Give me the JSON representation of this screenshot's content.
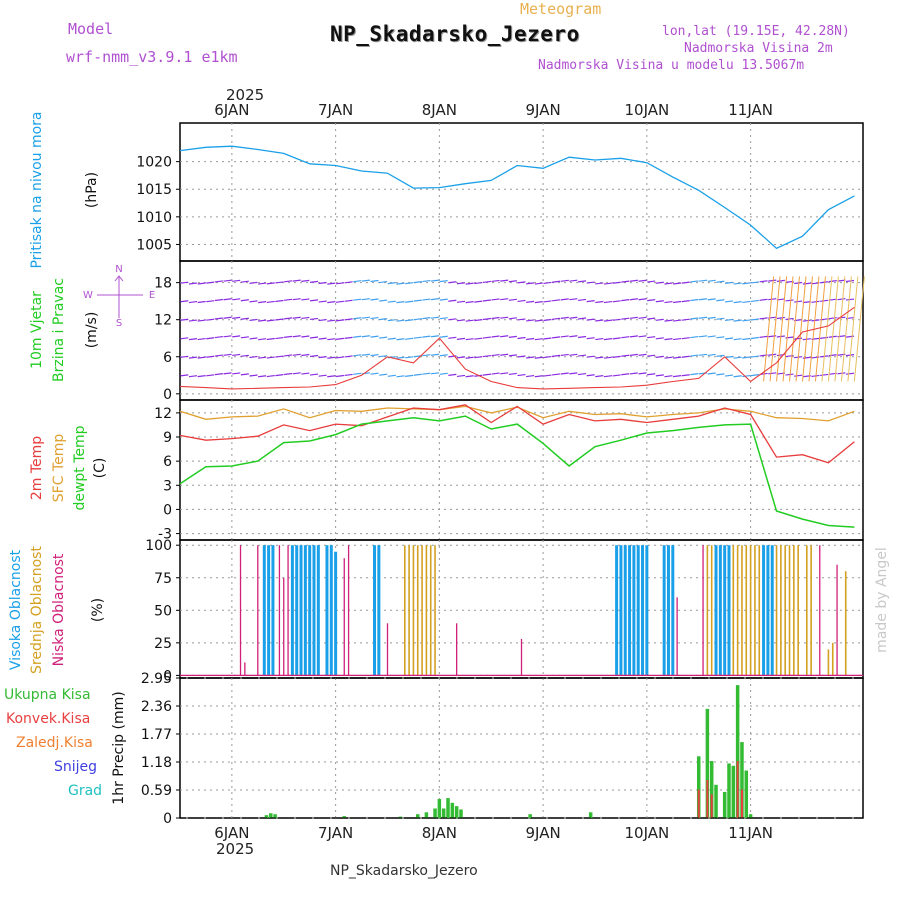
{
  "header": {
    "model_label": "Model",
    "model_name": "wrf-nmm_v3.9.1  e1km",
    "chart_kind": "Meteogram",
    "station": "NP_Skadarsko_Jezero",
    "coords": "lon,lat (19.15E, 42.28N)",
    "elevation": "Nadmorska Visina 2m",
    "model_elevation": "Nadmorska Visina u modelu 13.5067m"
  },
  "footer": {
    "station": "NP_Skadarsko_Jezero",
    "signature": "made by Angel"
  },
  "colors": {
    "pressure": "#1aa0e8",
    "t2m": "#e83b3b",
    "sfc": "#e0a030",
    "dew": "#22cc22",
    "high": "#1aa0e8",
    "mid": "#d4a020",
    "low": "#d0207a",
    "total": "#33bb33",
    "conv": "#e84040",
    "freez": "#f08030",
    "snow": "#4040e0",
    "grad": "#20c0c0",
    "header_purple": "#b050d0",
    "header_orange": "#e8b050"
  },
  "time": {
    "year": "2025",
    "day_labels": [
      "6JAN",
      "7JAN",
      "8JAN",
      "9JAN",
      "10JAN",
      "11JAN"
    ]
  },
  "panels": {
    "pressure": {
      "ylabel": "Pritisak na nivou mora",
      "unit": "(hPa)",
      "ticks": [
        "1005",
        "1010",
        "1015",
        "1020"
      ]
    },
    "wind": {
      "ylabel1": "10m Vjetar",
      "ylabel2": "Brzina i Pravac",
      "unit": "(m/s)",
      "ticks": [
        "0",
        "6",
        "12",
        "18"
      ],
      "compass_n": "N",
      "compass_w": "W",
      "compass_e": "E",
      "compass_s": "S"
    },
    "temp": {
      "ylabel1": "2m Temp",
      "ylabel2": "SFC Temp",
      "ylabel3": "dewpt Temp",
      "unit": "(C)",
      "ticks": [
        "-3",
        "0",
        "3",
        "6",
        "9",
        "12"
      ]
    },
    "cloud": {
      "ylabel1": "Visoka Oblacnost",
      "ylabel2": "Srednja Oblacnost",
      "ylabel3": "Niska Oblacnost",
      "unit": "(%)",
      "ticks": [
        "0",
        "25",
        "50",
        "75",
        "100"
      ]
    },
    "precip": {
      "ylabel": "1hr Precip (mm)",
      "ticks": [
        "0",
        "0.59",
        "1.18",
        "1.77",
        "2.36",
        "2.95"
      ],
      "legend": [
        "Ukupna Kisa",
        "Konvek.Kisa",
        "Zaledj.Kisa",
        "Snijeg",
        "Grad"
      ]
    }
  },
  "chart_data": [
    {
      "type": "line",
      "title": "Pritisak na nivou mora",
      "ylabel": "(hPa)",
      "ylim": [
        1002,
        1027
      ],
      "grid": true,
      "x_hours": [
        0,
        6,
        12,
        18,
        24,
        30,
        36,
        42,
        48,
        54,
        60,
        66,
        72,
        78,
        84,
        90,
        96,
        102,
        108,
        114,
        120,
        126,
        132,
        138,
        144,
        150,
        156
      ],
      "series": [
        {
          "name": "",
          "values": [
            1022,
            1022.6,
            1022.8,
            1022.2,
            1021.5,
            1019.6,
            1019.3,
            1018.3,
            1017.9,
            1015.2,
            1015.3,
            1016,
            1016.6,
            1019.3,
            1018.8,
            1020.8,
            1020.3,
            1020.6,
            1019.8,
            1017.2,
            1014.8,
            1011.7,
            1008.5,
            1004.3,
            1006.5,
            1011.3,
            1013.8
          ]
        }
      ]
    },
    {
      "type": "line",
      "title": "10m Vjetar Brzina i Pravac",
      "ylabel": "(m/s)",
      "ylim": [
        -1,
        21.5
      ],
      "grid": true,
      "x_hours": [
        0,
        6,
        12,
        18,
        24,
        30,
        36,
        42,
        48,
        54,
        60,
        66,
        72,
        78,
        84,
        90,
        96,
        102,
        108,
        114,
        120,
        126,
        132,
        138,
        144,
        150,
        156
      ],
      "series": [
        {
          "name": "",
          "values": [
            1.2,
            1.0,
            0.8,
            0.9,
            1.0,
            1.1,
            1.5,
            3.0,
            6.0,
            5.0,
            9.0,
            4.0,
            2.0,
            1.0,
            0.8,
            0.9,
            1.0,
            1.1,
            1.4,
            2.0,
            2.5,
            6.0,
            2.0,
            5.0,
            10.0,
            11.0,
            14.0
          ]
        }
      ]
    },
    {
      "type": "line",
      "title": "2m Temp / SFC Temp / dewpt Temp",
      "ylabel": "(C)",
      "ylim": [
        -3,
        13
      ],
      "grid": true,
      "x_hours": [
        0,
        6,
        12,
        18,
        24,
        30,
        36,
        42,
        48,
        54,
        60,
        66,
        72,
        78,
        84,
        90,
        96,
        102,
        108,
        114,
        120,
        126,
        132,
        138,
        144,
        150,
        156
      ],
      "series": [
        {
          "name": "2m Temp",
          "values": [
            9.2,
            8.6,
            8.8,
            9.1,
            10.5,
            9.8,
            10.6,
            10.4,
            11.5,
            12.6,
            12.4,
            13,
            10.8,
            12.8,
            10.6,
            11.8,
            11.0,
            11.2,
            10.8,
            11.2,
            11.6,
            12.6,
            11.8,
            6.5,
            6.8,
            5.8,
            8.4
          ]
        },
        {
          "name": "SFC Temp",
          "values": [
            12.2,
            11.2,
            11.5,
            11.6,
            12.5,
            11.4,
            12.3,
            12.2,
            12.6,
            12.5,
            12.4,
            12.8,
            12.0,
            12.7,
            11.4,
            12.2,
            11.8,
            11.9,
            11.5,
            11.8,
            12.0,
            12.5,
            12.2,
            11.4,
            11.3,
            11.0,
            12.2
          ]
        },
        {
          "name": "dewpt Temp",
          "values": [
            3.2,
            5.3,
            5.4,
            6.0,
            8.3,
            8.5,
            9.3,
            10.6,
            11.0,
            11.4,
            11.0,
            11.6,
            10.0,
            10.6,
            8.2,
            5.4,
            7.8,
            8.6,
            9.5,
            9.8,
            10.2,
            10.5,
            10.6,
            -0.2,
            -1.2,
            -2.0,
            -2.2
          ]
        }
      ]
    },
    {
      "type": "bar",
      "title": "Visoka / Srednja / Niska Oblacnost",
      "ylabel": "(%)",
      "ylim": [
        0,
        100
      ],
      "grid": true,
      "series": [
        {
          "name": "Visoka Oblacnost",
          "bars": [
            [
              19.5,
              100
            ],
            [
              20.5,
              100
            ],
            [
              21.5,
              100
            ],
            [
              26,
              100
            ],
            [
              27,
              100
            ],
            [
              28,
              100
            ],
            [
              29,
              100
            ],
            [
              30,
              100
            ],
            [
              31,
              100
            ],
            [
              32,
              100
            ],
            [
              34,
              100
            ],
            [
              35,
              100
            ],
            [
              36,
              95
            ],
            [
              45,
              100
            ],
            [
              46,
              100
            ],
            [
              101,
              100
            ],
            [
              102,
              100
            ],
            [
              103,
              100
            ],
            [
              104,
              100
            ],
            [
              105,
              100
            ],
            [
              106,
              100
            ],
            [
              107,
              100
            ],
            [
              108,
              100
            ],
            [
              112,
              100
            ],
            [
              113,
              100
            ],
            [
              114,
              100
            ],
            [
              124,
              100
            ],
            [
              125,
              100
            ],
            [
              126,
              100
            ],
            [
              127,
              100
            ],
            [
              135,
              100
            ],
            [
              136,
              100
            ],
            [
              137,
              100
            ]
          ]
        },
        {
          "name": "Srednja Oblacnost",
          "bars": [
            [
              52,
              100
            ],
            [
              53,
              100
            ],
            [
              54,
              100
            ],
            [
              55,
              100
            ],
            [
              56,
              100
            ],
            [
              57,
              100
            ],
            [
              58,
              100
            ],
            [
              59,
              100
            ],
            [
              122,
              100
            ],
            [
              123,
              100
            ],
            [
              128,
              100
            ],
            [
              129,
              100
            ],
            [
              130,
              100
            ],
            [
              131,
              100
            ],
            [
              132,
              100
            ],
            [
              133,
              100
            ],
            [
              134,
              100
            ],
            [
              138,
              100
            ],
            [
              139,
              100
            ],
            [
              140,
              100
            ],
            [
              141,
              100
            ],
            [
              142,
              100
            ],
            [
              143,
              100
            ],
            [
              145,
              100
            ],
            [
              146,
              100
            ],
            [
              150,
              20
            ],
            [
              151,
              25
            ],
            [
              154,
              80
            ]
          ]
        },
        {
          "name": "Niska Oblacnost",
          "bars": [
            [
              14,
              100
            ],
            [
              15,
              10
            ],
            [
              18,
              100
            ],
            [
              23,
              100
            ],
            [
              24,
              75
            ],
            [
              25,
              100
            ],
            [
              38,
              90
            ],
            [
              39,
              100
            ],
            [
              48,
              40
            ],
            [
              64,
              40
            ],
            [
              79,
              28
            ],
            [
              115,
              60
            ],
            [
              121,
              100
            ],
            [
              148,
              100
            ],
            [
              152,
              85
            ]
          ]
        }
      ]
    },
    {
      "type": "bar",
      "title": "1hr Precip",
      "ylabel": "(mm)",
      "ylim": [
        0,
        2.95
      ],
      "grid": true,
      "series": [
        {
          "name": "Ukupna Kisa",
          "bars": [
            [
              20,
              0.06
            ],
            [
              21,
              0.1
            ],
            [
              22,
              0.08
            ],
            [
              38,
              0.04
            ],
            [
              51,
              0.03
            ],
            [
              55,
              0.08
            ],
            [
              57,
              0.12
            ],
            [
              59,
              0.2
            ],
            [
              60,
              0.4
            ],
            [
              61,
              0.2
            ],
            [
              62,
              0.42
            ],
            [
              63,
              0.32
            ],
            [
              64,
              0.25
            ],
            [
              65,
              0.18
            ],
            [
              81,
              0.08
            ],
            [
              95,
              0.12
            ],
            [
              120,
              1.3
            ],
            [
              122,
              2.3
            ],
            [
              123,
              1.2
            ],
            [
              124,
              0.7
            ],
            [
              126,
              0.55
            ],
            [
              127,
              1.15
            ],
            [
              128,
              1.1
            ],
            [
              129,
              2.8
            ],
            [
              130,
              1.6
            ],
            [
              131,
              1.0
            ],
            [
              132,
              0.08
            ]
          ]
        },
        {
          "name": "Konvek.Kisa",
          "bars": [
            [
              120,
              0.6
            ],
            [
              122,
              0.8
            ],
            [
              123,
              0.5
            ],
            [
              129,
              1.2
            ],
            [
              130,
              0.6
            ]
          ]
        },
        {
          "name": "Zaledj.Kisa",
          "bars": []
        },
        {
          "name": "Snijeg",
          "bars": []
        },
        {
          "name": "Grad",
          "bars": []
        }
      ]
    }
  ]
}
